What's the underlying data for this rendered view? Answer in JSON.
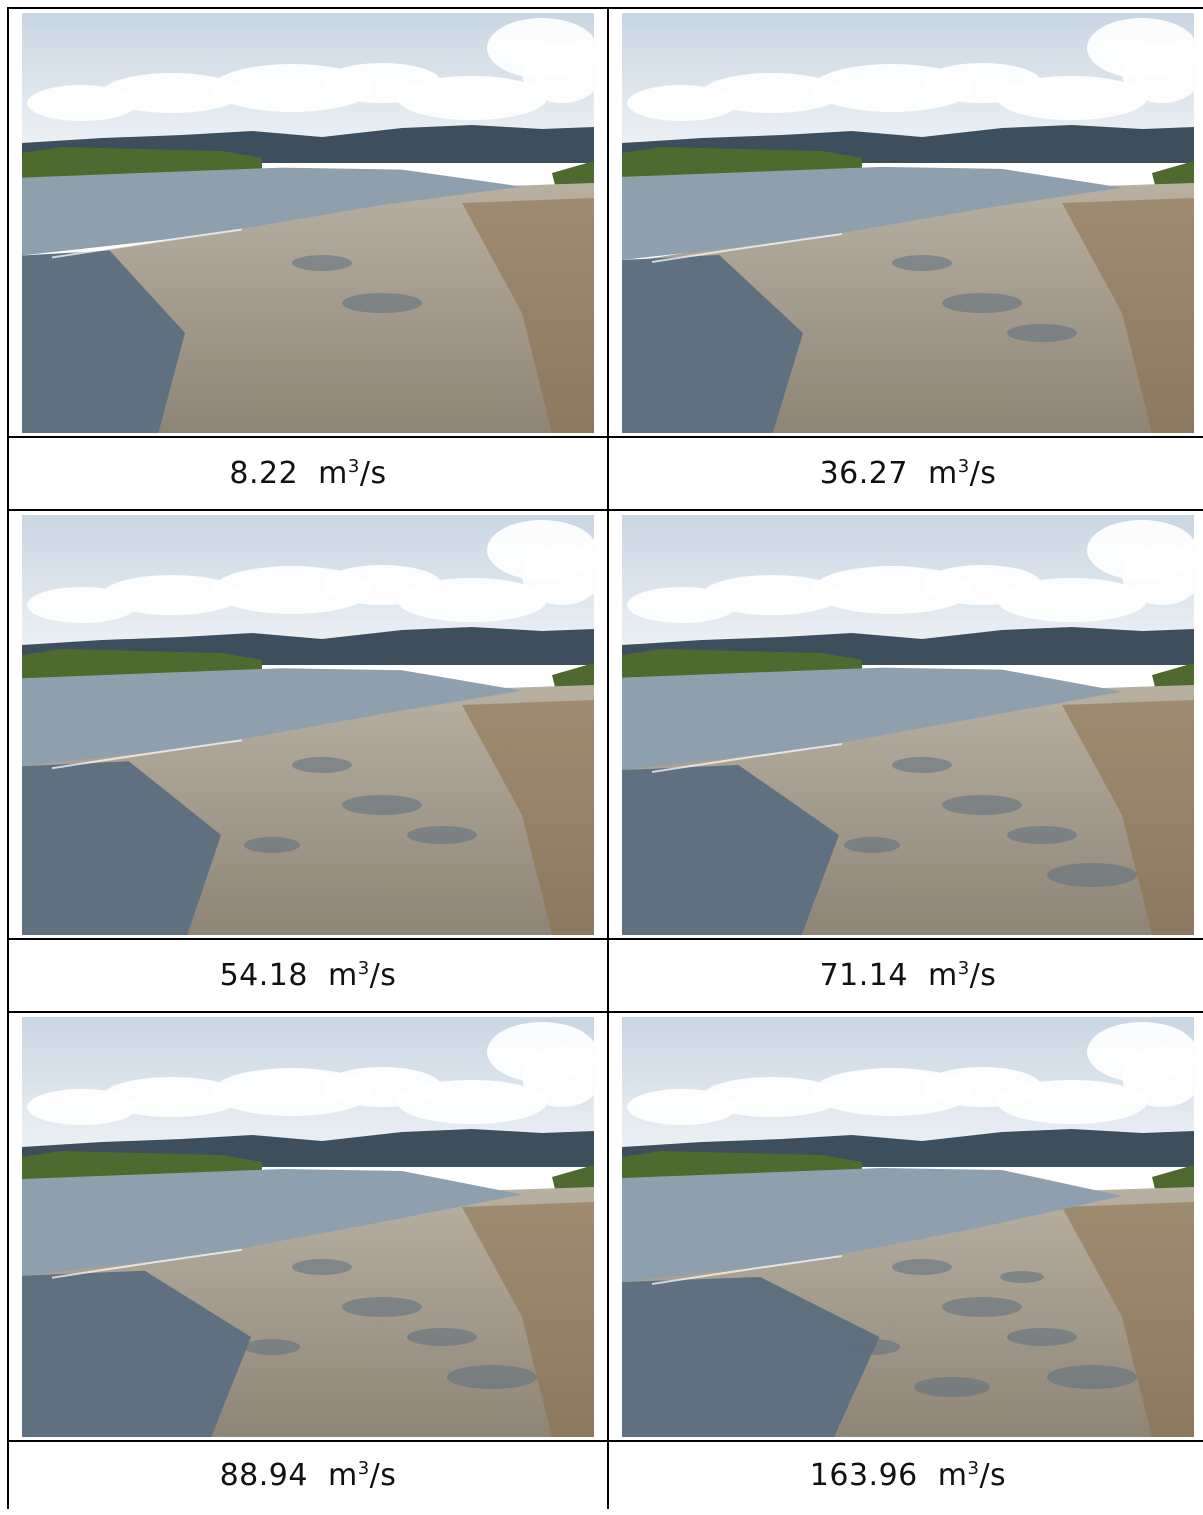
{
  "unit": {
    "base": "m",
    "exponent": "3",
    "suffix": "/s"
  },
  "photos": [
    {
      "label": "8.22",
      "water_level": 0.1,
      "wet_fraction": 0.22
    },
    {
      "label": "36.27",
      "water_level": 0.28,
      "wet_fraction": 0.34
    },
    {
      "label": "54.18",
      "water_level": 0.45,
      "wet_fraction": 0.46
    },
    {
      "label": "71.14",
      "water_level": 0.6,
      "wet_fraction": 0.58
    },
    {
      "label": "88.94",
      "water_level": 0.75,
      "wet_fraction": 0.66
    },
    {
      "label": "163.96",
      "water_level": 1.0,
      "wet_fraction": 0.85
    }
  ],
  "colors": {
    "sky_top": "#c9d6e3",
    "sky_bottom": "#eef2f5",
    "cloud": "#ffffff",
    "mountain": "#3d4f5c",
    "treeline": "#4f6a2e",
    "river": "#8ea0ae",
    "river_dark": "#5f7080",
    "gravel": "#b8b0a1",
    "gravel_dark": "#8e8577",
    "bank_brown": "#8c6f4a"
  }
}
